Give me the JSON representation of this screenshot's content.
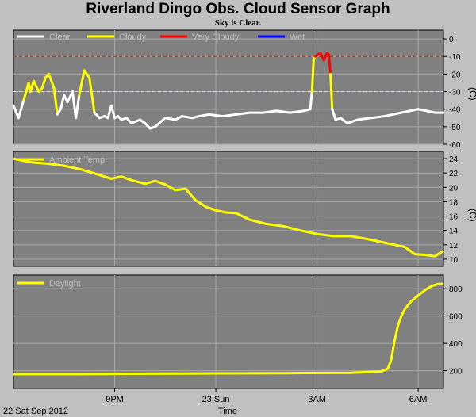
{
  "title": "Riverland Dingo Obs. Cloud Sensor Graph",
  "subtitle": "Sky is Clear.",
  "date_label": "22 Sat Sep 2012",
  "x_axis_label": "Time",
  "x_ticks": [
    {
      "label": "9PM",
      "h": 3
    },
    {
      "label": "23 Sun",
      "h": 6
    },
    {
      "label": "3AM",
      "h": 9
    },
    {
      "label": "6AM",
      "h": 12
    }
  ],
  "colors": {
    "panel": "#808080",
    "grid": "#a9a9a9",
    "clear": "#ffffff",
    "cloudy": "#ffff00",
    "very_cloudy": "#ff0000",
    "wet": "#0000ff",
    "ambient": "#ffff00",
    "daylight": "#ffff00",
    "legend_text_cloud": "#c0c0c0"
  },
  "chart_data": [
    {
      "type": "line",
      "name": "sky-temperature",
      "x_unit": "hours since 6PM",
      "xlim": [
        0,
        12.75
      ],
      "ylim": [
        -60,
        5
      ],
      "y_ticks": [
        0,
        -10,
        -20,
        -30,
        -40,
        -50,
        -60
      ],
      "ylabel": "(C)",
      "thresholds": {
        "cloudy": -30,
        "very_cloudy": -10
      },
      "legend": [
        "Clear",
        "Cloudy",
        "Very Cloudy",
        "Wet"
      ],
      "grid": true,
      "x": [
        0,
        0.15,
        0.3,
        0.45,
        0.5,
        0.6,
        0.75,
        0.85,
        0.95,
        1.05,
        1.2,
        1.3,
        1.4,
        1.5,
        1.6,
        1.75,
        1.85,
        1.95,
        2.1,
        2.25,
        2.4,
        2.55,
        2.7,
        2.8,
        2.9,
        3.0,
        3.1,
        3.2,
        3.35,
        3.5,
        3.75,
        3.9,
        4.05,
        4.2,
        4.5,
        4.8,
        5.0,
        5.3,
        5.5,
        5.8,
        6.2,
        6.6,
        7.0,
        7.4,
        7.8,
        8.2,
        8.6,
        8.8,
        8.85,
        8.9,
        8.95,
        9.1,
        9.2,
        9.3,
        9.35,
        9.4,
        9.45,
        9.55,
        9.7,
        9.9,
        10.2,
        10.6,
        11.0,
        11.5,
        12.0,
        12.5,
        12.75
      ],
      "y": [
        -38,
        -45,
        -35,
        -25,
        -30,
        -24,
        -30,
        -28,
        -22,
        -20,
        -28,
        -43,
        -40,
        -32,
        -36,
        -30,
        -45,
        -32,
        -18,
        -22,
        -42,
        -45,
        -44,
        -45,
        -38,
        -45,
        -44,
        -46,
        -45,
        -48,
        -46,
        -48,
        -51,
        -50,
        -45,
        -46,
        -44,
        -45,
        -44,
        -43,
        -44,
        -43,
        -42,
        -42,
        -41,
        -42,
        -41,
        -40,
        -30,
        -12,
        -10,
        -8,
        -12,
        -8,
        -9,
        -20,
        -40,
        -46,
        -45,
        -48,
        -46,
        -45,
        -44,
        -42,
        -40,
        -42,
        -42
      ]
    },
    {
      "type": "line",
      "name": "ambient-temp",
      "x_unit": "hours since 6PM",
      "xlim": [
        0,
        12.75
      ],
      "ylim": [
        9,
        25
      ],
      "y_ticks": [
        24,
        22,
        20,
        18,
        16,
        14,
        12,
        10
      ],
      "ylabel": "(C)",
      "legend": [
        "Ambient Temp"
      ],
      "grid": true,
      "x": [
        0,
        0.5,
        1.0,
        1.5,
        2.0,
        2.5,
        2.9,
        3.2,
        3.5,
        3.9,
        4.2,
        4.5,
        4.8,
        5.1,
        5.4,
        5.7,
        6.0,
        6.3,
        6.6,
        7.0,
        7.5,
        8.0,
        8.5,
        9.0,
        9.5,
        10.0,
        10.5,
        11.0,
        11.3,
        11.6,
        11.9,
        12.2,
        12.5,
        12.75
      ],
      "y": [
        24.0,
        23.5,
        23.3,
        23.0,
        22.5,
        21.8,
        21.2,
        21.5,
        21.0,
        20.5,
        20.9,
        20.4,
        19.6,
        19.8,
        18.2,
        17.3,
        16.8,
        16.5,
        16.4,
        15.5,
        14.9,
        14.6,
        14.0,
        13.5,
        13.2,
        13.2,
        12.8,
        12.3,
        12.0,
        11.7,
        10.7,
        10.6,
        10.4,
        11.2
      ]
    },
    {
      "type": "line",
      "name": "daylight",
      "x_unit": "hours since 6PM",
      "xlim": [
        0,
        12.75
      ],
      "ylim": [
        70,
        900
      ],
      "y_ticks": [
        800,
        600,
        400,
        200
      ],
      "legend": [
        "Daylight"
      ],
      "grid": true,
      "x": [
        0,
        2.0,
        4.0,
        6.0,
        8.0,
        10.0,
        10.9,
        11.1,
        11.2,
        11.3,
        11.4,
        11.5,
        11.6,
        11.8,
        12.0,
        12.2,
        12.4,
        12.6,
        12.75
      ],
      "y": [
        175,
        175,
        178,
        180,
        182,
        185,
        195,
        215,
        280,
        420,
        530,
        600,
        650,
        710,
        750,
        790,
        820,
        835,
        835
      ]
    }
  ]
}
